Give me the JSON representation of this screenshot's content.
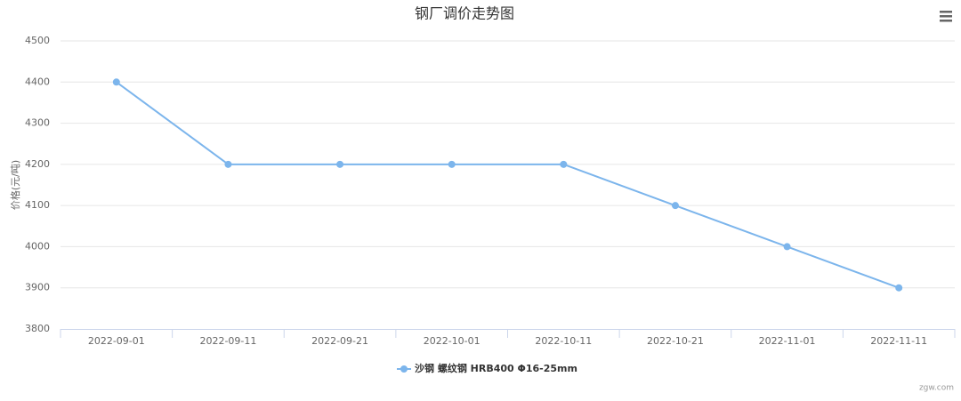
{
  "chart_data": {
    "type": "line",
    "title": "钢厂调价走势图",
    "y_label": "价格(元/吨)",
    "categories": [
      "2022-09-01",
      "2022-09-11",
      "2022-09-21",
      "2022-10-01",
      "2022-10-11",
      "2022-10-21",
      "2022-11-01",
      "2022-11-11"
    ],
    "series": [
      {
        "name": "沙钢 螺纹钢 HRB400 Φ16-25mm",
        "color": "#7cb5ec",
        "values": [
          4400,
          4200,
          4200,
          4200,
          4200,
          4100,
          4000,
          3900
        ]
      }
    ],
    "ylim": [
      3800,
      4500
    ],
    "yticks": [
      3800,
      3900,
      4000,
      4100,
      4200,
      4300,
      4400,
      4500
    ],
    "grid": true,
    "legend": "bottom",
    "credits": "zgw.com"
  }
}
